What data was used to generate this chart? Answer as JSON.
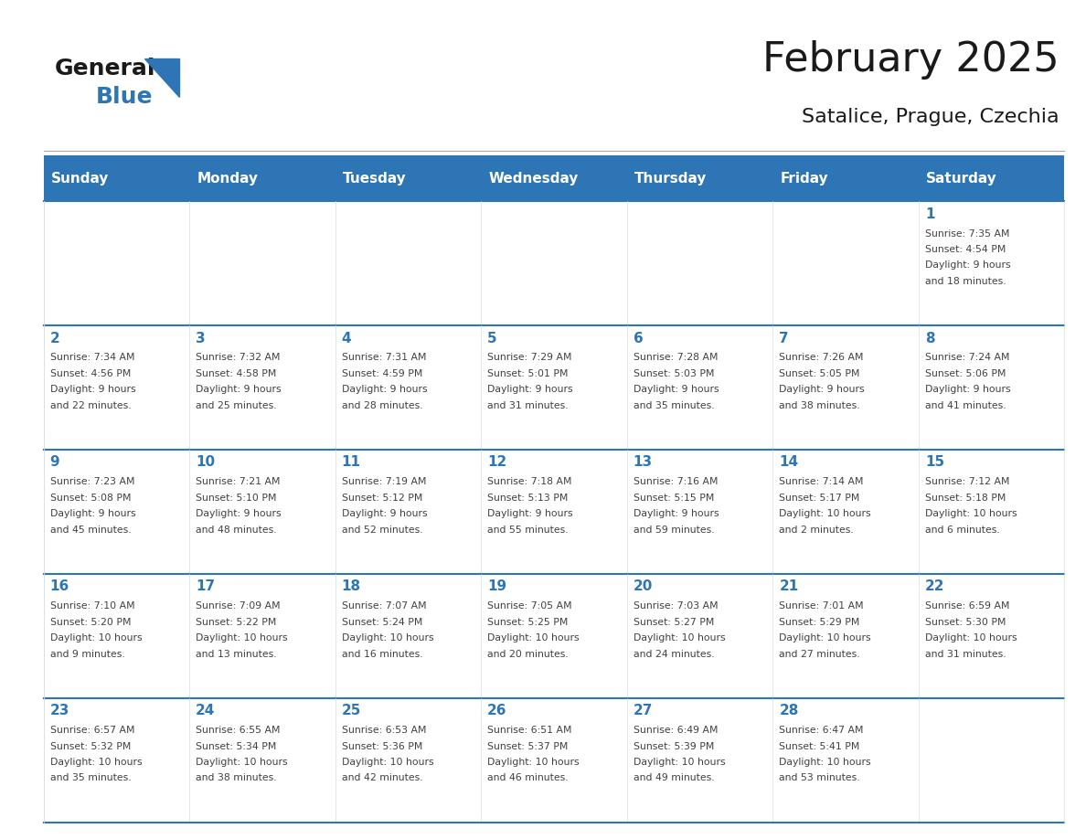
{
  "title": "February 2025",
  "subtitle": "Satalice, Prague, Czechia",
  "days_of_week": [
    "Sunday",
    "Monday",
    "Tuesday",
    "Wednesday",
    "Thursday",
    "Friday",
    "Saturday"
  ],
  "header_bg": "#2E75B6",
  "header_text": "#FFFFFF",
  "day_number_color": "#2E75B6",
  "info_text_color": "#404040",
  "title_color": "#1a1a1a",
  "subtitle_color": "#1a1a1a",
  "blue_color": "#2E75B6",
  "weeks": [
    [
      {
        "day": null,
        "info": ""
      },
      {
        "day": null,
        "info": ""
      },
      {
        "day": null,
        "info": ""
      },
      {
        "day": null,
        "info": ""
      },
      {
        "day": null,
        "info": ""
      },
      {
        "day": null,
        "info": ""
      },
      {
        "day": 1,
        "info": "Sunrise: 7:35 AM\nSunset: 4:54 PM\nDaylight: 9 hours\nand 18 minutes."
      }
    ],
    [
      {
        "day": 2,
        "info": "Sunrise: 7:34 AM\nSunset: 4:56 PM\nDaylight: 9 hours\nand 22 minutes."
      },
      {
        "day": 3,
        "info": "Sunrise: 7:32 AM\nSunset: 4:58 PM\nDaylight: 9 hours\nand 25 minutes."
      },
      {
        "day": 4,
        "info": "Sunrise: 7:31 AM\nSunset: 4:59 PM\nDaylight: 9 hours\nand 28 minutes."
      },
      {
        "day": 5,
        "info": "Sunrise: 7:29 AM\nSunset: 5:01 PM\nDaylight: 9 hours\nand 31 minutes."
      },
      {
        "day": 6,
        "info": "Sunrise: 7:28 AM\nSunset: 5:03 PM\nDaylight: 9 hours\nand 35 minutes."
      },
      {
        "day": 7,
        "info": "Sunrise: 7:26 AM\nSunset: 5:05 PM\nDaylight: 9 hours\nand 38 minutes."
      },
      {
        "day": 8,
        "info": "Sunrise: 7:24 AM\nSunset: 5:06 PM\nDaylight: 9 hours\nand 41 minutes."
      }
    ],
    [
      {
        "day": 9,
        "info": "Sunrise: 7:23 AM\nSunset: 5:08 PM\nDaylight: 9 hours\nand 45 minutes."
      },
      {
        "day": 10,
        "info": "Sunrise: 7:21 AM\nSunset: 5:10 PM\nDaylight: 9 hours\nand 48 minutes."
      },
      {
        "day": 11,
        "info": "Sunrise: 7:19 AM\nSunset: 5:12 PM\nDaylight: 9 hours\nand 52 minutes."
      },
      {
        "day": 12,
        "info": "Sunrise: 7:18 AM\nSunset: 5:13 PM\nDaylight: 9 hours\nand 55 minutes."
      },
      {
        "day": 13,
        "info": "Sunrise: 7:16 AM\nSunset: 5:15 PM\nDaylight: 9 hours\nand 59 minutes."
      },
      {
        "day": 14,
        "info": "Sunrise: 7:14 AM\nSunset: 5:17 PM\nDaylight: 10 hours\nand 2 minutes."
      },
      {
        "day": 15,
        "info": "Sunrise: 7:12 AM\nSunset: 5:18 PM\nDaylight: 10 hours\nand 6 minutes."
      }
    ],
    [
      {
        "day": 16,
        "info": "Sunrise: 7:10 AM\nSunset: 5:20 PM\nDaylight: 10 hours\nand 9 minutes."
      },
      {
        "day": 17,
        "info": "Sunrise: 7:09 AM\nSunset: 5:22 PM\nDaylight: 10 hours\nand 13 minutes."
      },
      {
        "day": 18,
        "info": "Sunrise: 7:07 AM\nSunset: 5:24 PM\nDaylight: 10 hours\nand 16 minutes."
      },
      {
        "day": 19,
        "info": "Sunrise: 7:05 AM\nSunset: 5:25 PM\nDaylight: 10 hours\nand 20 minutes."
      },
      {
        "day": 20,
        "info": "Sunrise: 7:03 AM\nSunset: 5:27 PM\nDaylight: 10 hours\nand 24 minutes."
      },
      {
        "day": 21,
        "info": "Sunrise: 7:01 AM\nSunset: 5:29 PM\nDaylight: 10 hours\nand 27 minutes."
      },
      {
        "day": 22,
        "info": "Sunrise: 6:59 AM\nSunset: 5:30 PM\nDaylight: 10 hours\nand 31 minutes."
      }
    ],
    [
      {
        "day": 23,
        "info": "Sunrise: 6:57 AM\nSunset: 5:32 PM\nDaylight: 10 hours\nand 35 minutes."
      },
      {
        "day": 24,
        "info": "Sunrise: 6:55 AM\nSunset: 5:34 PM\nDaylight: 10 hours\nand 38 minutes."
      },
      {
        "day": 25,
        "info": "Sunrise: 6:53 AM\nSunset: 5:36 PM\nDaylight: 10 hours\nand 42 minutes."
      },
      {
        "day": 26,
        "info": "Sunrise: 6:51 AM\nSunset: 5:37 PM\nDaylight: 10 hours\nand 46 minutes."
      },
      {
        "day": 27,
        "info": "Sunrise: 6:49 AM\nSunset: 5:39 PM\nDaylight: 10 hours\nand 49 minutes."
      },
      {
        "day": 28,
        "info": "Sunrise: 6:47 AM\nSunset: 5:41 PM\nDaylight: 10 hours\nand 53 minutes."
      },
      {
        "day": null,
        "info": ""
      }
    ]
  ]
}
